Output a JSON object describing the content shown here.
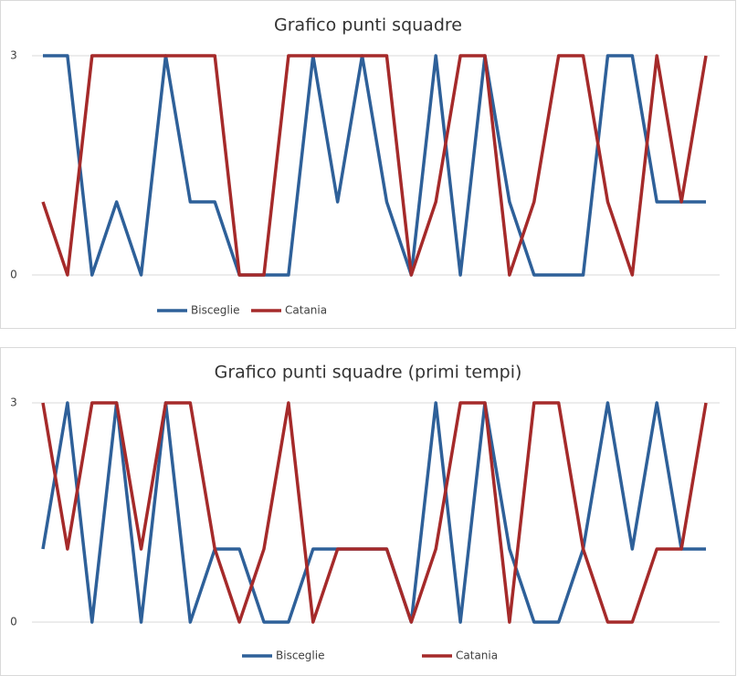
{
  "chart_data": [
    {
      "type": "line",
      "title": "Grafico punti squadre",
      "categories": [
        null,
        null,
        null,
        null,
        null,
        null,
        null,
        null,
        null,
        null,
        null,
        null,
        null,
        null,
        null,
        null,
        null,
        null,
        null,
        null,
        null,
        null,
        null,
        null,
        null,
        null,
        null,
        null
      ],
      "series": [
        {
          "name": "Bisceglie",
          "color": "#2e6099",
          "values": [
            3,
            3,
            0,
            1,
            0,
            3,
            1,
            1,
            0,
            0,
            0,
            3,
            1,
            3,
            1,
            0,
            3,
            0,
            3,
            1,
            0,
            0,
            0,
            3,
            3,
            1,
            1,
            1
          ]
        },
        {
          "name": "Catania",
          "color": "#a52a2a",
          "values": [
            1,
            0,
            3,
            3,
            3,
            3,
            3,
            3,
            0,
            0,
            3,
            3,
            3,
            3,
            3,
            0,
            1,
            3,
            3,
            0,
            1,
            3,
            3,
            1,
            0,
            3,
            1,
            3
          ]
        }
      ],
      "ylim": [
        0,
        3
      ],
      "yticks": [
        0,
        3
      ],
      "grid": true,
      "legend": "bottom"
    },
    {
      "type": "line",
      "title": "Grafico punti squadre (primi tempi)",
      "categories": [
        null,
        null,
        null,
        null,
        null,
        null,
        null,
        null,
        null,
        null,
        null,
        null,
        null,
        null,
        null,
        null,
        null,
        null,
        null,
        null,
        null,
        null,
        null,
        null,
        null,
        null,
        null,
        null
      ],
      "series": [
        {
          "name": "Bisceglie",
          "color": "#2e6099",
          "values": [
            1,
            3,
            0,
            3,
            0,
            3,
            0,
            1,
            1,
            0,
            0,
            1,
            1,
            1,
            1,
            0,
            3,
            0,
            3,
            1,
            0,
            0,
            1,
            3,
            1,
            3,
            1,
            1
          ]
        },
        {
          "name": "Catania",
          "color": "#a52a2a",
          "values": [
            3,
            1,
            3,
            3,
            1,
            3,
            3,
            1,
            0,
            1,
            3,
            0,
            1,
            1,
            1,
            0,
            1,
            3,
            3,
            0,
            3,
            3,
            1,
            0,
            0,
            1,
            1,
            3
          ]
        }
      ],
      "ylim": [
        0,
        3
      ],
      "yticks": [
        0,
        3
      ],
      "grid": true,
      "legend": "bottom"
    }
  ]
}
